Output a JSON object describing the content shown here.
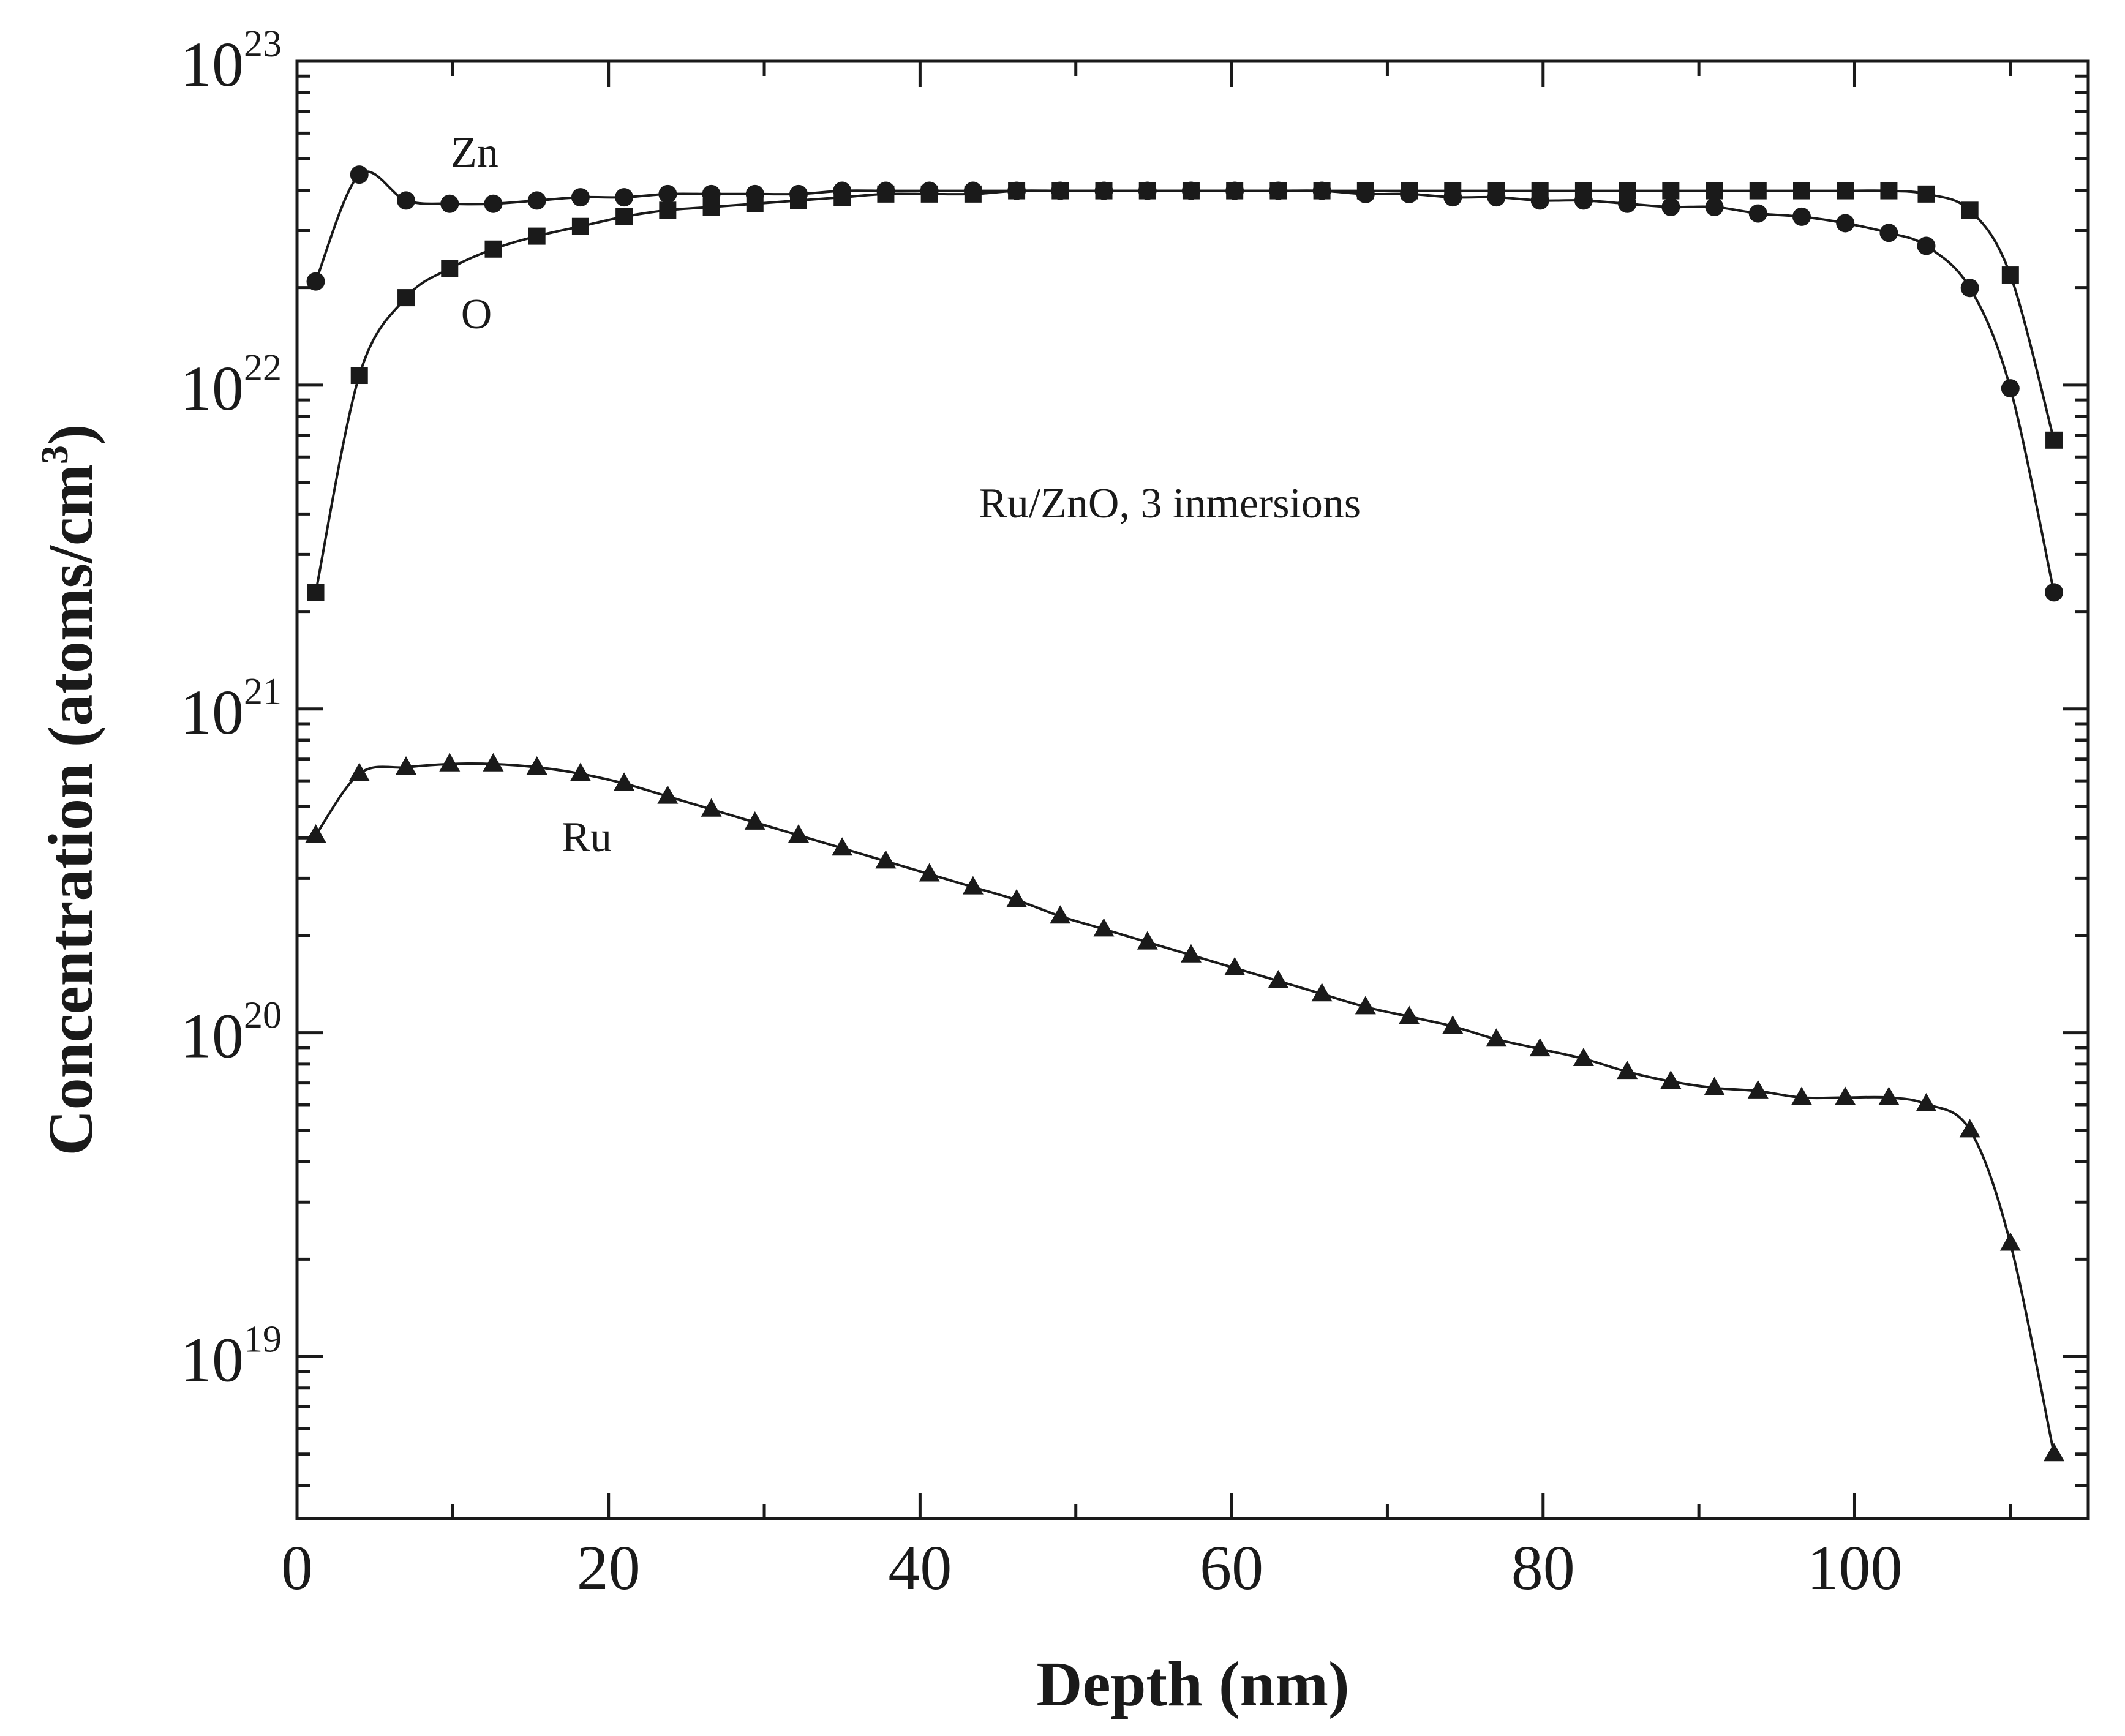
{
  "chart_data": {
    "type": "scatter",
    "title": "",
    "xlabel": "Depth (nm)",
    "ylabel_main": "Concentration (atoms/cm",
    "ylabel_sup": "3",
    "ylabel_end": ")",
    "xlim": [
      0,
      115
    ],
    "ylog10_range": [
      18.5,
      23
    ],
    "x_ticks": [
      0,
      20,
      40,
      60,
      80,
      100
    ],
    "x_tick_labels": [
      "0",
      "20",
      "40",
      "60",
      "80",
      "100"
    ],
    "y_tick_exponents": [
      19,
      20,
      21,
      22,
      23
    ],
    "y_tick_base": "10",
    "y_tick_exp_labels": [
      "19",
      "20",
      "21",
      "22",
      "23"
    ],
    "annotation": "Ru/ZnO, 3 inmersions",
    "series": [
      {
        "name": "Zn",
        "marker": "circle",
        "x": [
          1.2,
          4,
          7,
          9.8,
          12.6,
          15.4,
          18.2,
          21,
          23.8,
          26.6,
          29.4,
          32.2,
          35,
          37.8,
          40.6,
          43.4,
          46.2,
          49,
          51.8,
          54.6,
          57.4,
          60.2,
          63,
          65.8,
          68.6,
          71.4,
          74.2,
          77,
          79.8,
          82.6,
          85.4,
          88.2,
          91,
          93.8,
          96.6,
          99.4,
          102.2,
          104.6,
          107.4,
          110,
          112.8
        ],
        "log10": [
          22.32,
          22.65,
          22.57,
          22.56,
          22.56,
          22.57,
          22.58,
          22.58,
          22.59,
          22.59,
          22.59,
          22.59,
          22.6,
          22.6,
          22.6,
          22.6,
          22.6,
          22.6,
          22.6,
          22.6,
          22.6,
          22.6,
          22.6,
          22.6,
          22.59,
          22.59,
          22.58,
          22.58,
          22.57,
          22.57,
          22.56,
          22.55,
          22.55,
          22.53,
          22.52,
          22.5,
          22.47,
          22.43,
          22.3,
          21.99,
          21.36
        ]
      },
      {
        "name": "O",
        "marker": "square",
        "x": [
          1.2,
          4,
          7,
          9.8,
          12.6,
          15.4,
          18.2,
          21,
          23.8,
          26.6,
          29.4,
          32.2,
          35,
          37.8,
          40.6,
          43.4,
          46.2,
          49,
          51.8,
          54.6,
          57.4,
          60.2,
          63,
          65.8,
          68.6,
          71.4,
          74.2,
          77,
          79.8,
          82.6,
          85.4,
          88.2,
          91,
          93.8,
          96.6,
          99.4,
          102.2,
          104.6,
          107.4,
          110,
          112.8
        ],
        "log10": [
          21.36,
          22.03,
          22.27,
          22.36,
          22.42,
          22.46,
          22.49,
          22.52,
          22.54,
          22.55,
          22.56,
          22.57,
          22.58,
          22.59,
          22.59,
          22.59,
          22.6,
          22.6,
          22.6,
          22.6,
          22.6,
          22.6,
          22.6,
          22.6,
          22.6,
          22.6,
          22.6,
          22.6,
          22.6,
          22.6,
          22.6,
          22.6,
          22.6,
          22.6,
          22.6,
          22.6,
          22.6,
          22.59,
          22.54,
          22.34,
          21.83
        ]
      },
      {
        "name": "Ru",
        "marker": "triangle",
        "x": [
          1.2,
          4,
          7,
          9.8,
          12.6,
          15.4,
          18.2,
          21,
          23.8,
          26.6,
          29.4,
          32.2,
          35,
          37.8,
          40.6,
          43.4,
          46.2,
          49,
          51.8,
          54.6,
          57.4,
          60.2,
          63,
          65.8,
          68.6,
          71.4,
          74.2,
          77,
          79.8,
          82.6,
          85.4,
          88.2,
          91,
          93.8,
          96.6,
          99.4,
          102.2,
          104.6,
          107.4,
          110,
          112.8
        ],
        "log10": [
          20.61,
          20.8,
          20.82,
          20.83,
          20.83,
          20.82,
          20.8,
          20.77,
          20.73,
          20.69,
          20.65,
          20.61,
          20.57,
          20.53,
          20.49,
          20.45,
          20.41,
          20.36,
          20.32,
          20.28,
          20.24,
          20.2,
          20.16,
          20.12,
          20.08,
          20.05,
          20.02,
          19.98,
          19.95,
          19.92,
          19.88,
          19.85,
          19.83,
          19.82,
          19.8,
          19.8,
          19.8,
          19.78,
          19.7,
          19.35,
          18.7
        ]
      }
    ]
  }
}
